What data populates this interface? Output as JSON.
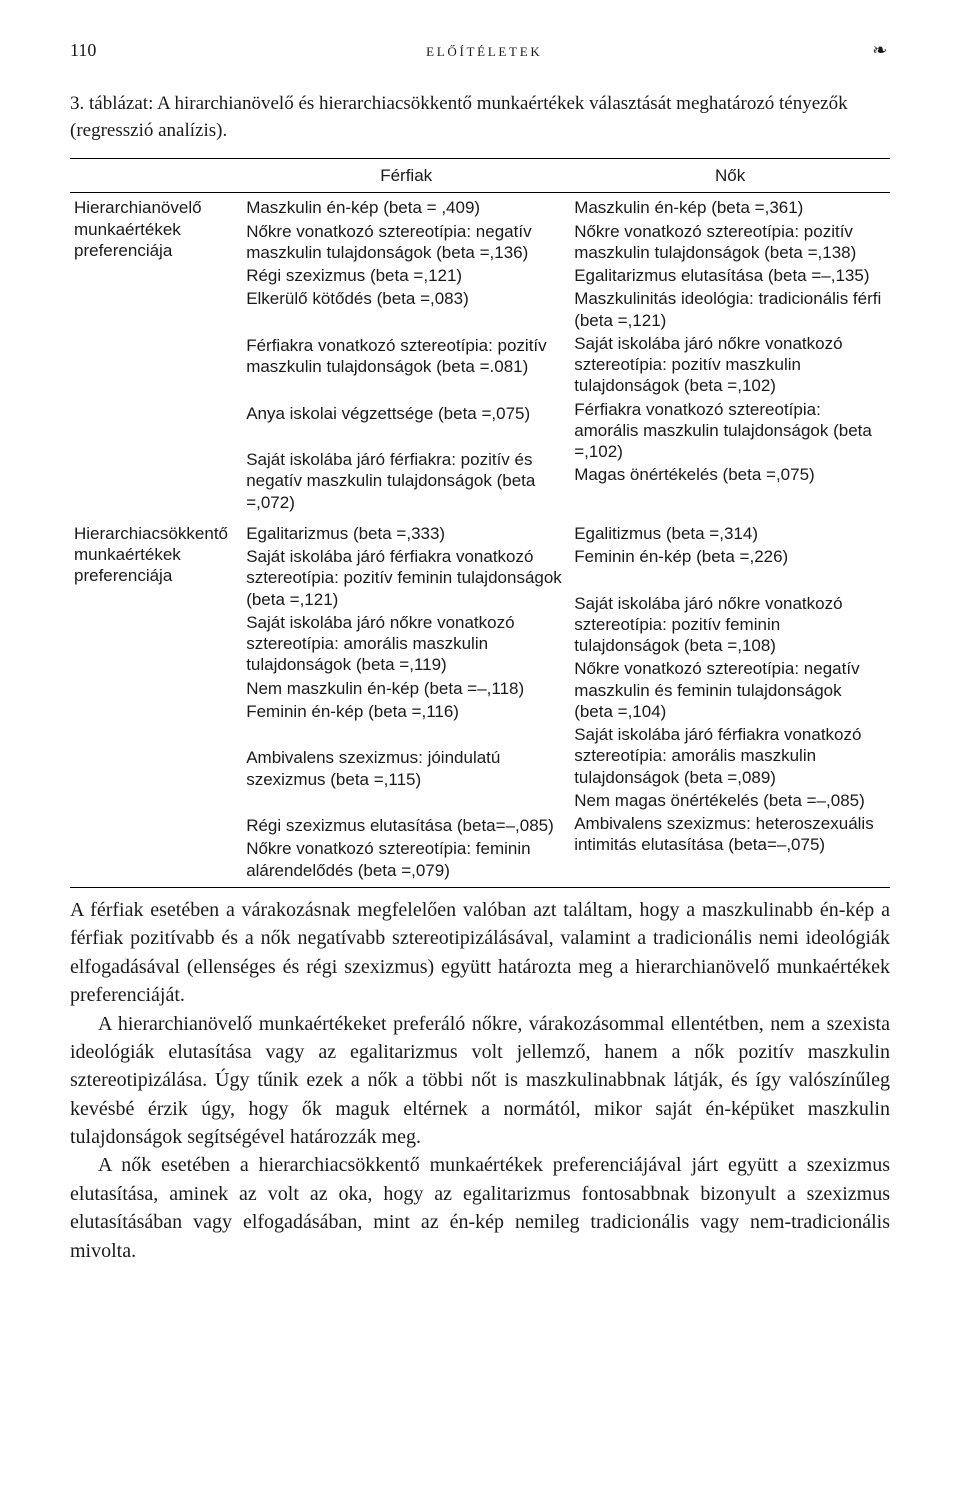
{
  "header": {
    "page_number": "110",
    "running_title": "előítéletek",
    "ornament": "❧"
  },
  "caption": "3. táblázat: A hirarchianövelő és hierarchiacsökkentő munkaértékek választását meghatározó tényezők (regresszió analízis).",
  "cols": {
    "blank": "",
    "men": "Férfiak",
    "women": "Nők"
  },
  "rows": [
    {
      "label": "Hierarchianövelő munkaértékek preferenciája",
      "men": [
        "Maszkulin én-kép (beta = ,409)",
        "Nőkre vonatkozó sztereotípia: negatív maszkulin tulajdonságok (beta =,136)",
        "Régi szexizmus (beta =,121)",
        "Elkerülő kötődés (beta =,083)",
        "",
        "Férfiakra vonatkozó sztereotípia: pozitív maszkulin tulajdonságok (beta =.081)",
        "",
        "Anya iskolai végzettsége (beta =,075)",
        "",
        "Saját iskolába járó férfiakra: pozitív és negatív maszkulin tulajdonságok (beta =,072)"
      ],
      "women": [
        "Maszkulin én-kép (beta =,361)",
        "Nőkre vonatkozó sztereotípia: pozitív maszkulin tulajdonságok (beta =,138)",
        "Egalitarizmus elutasítása (beta =–,135)",
        "Maszkulinitás ideológia: tradicionális férfi (beta =,121)",
        "Saját iskolába járó nőkre vonatkozó sztereotípia: pozitív maszkulin tulajdonságok (beta =,102)",
        "Férfiakra vonatkozó sztereotípia: amorális maszkulin tulajdonságok (beta =,102)",
        "Magas önértékelés (beta =,075)"
      ]
    },
    {
      "label": "Hierarchiacsökkentő munkaértékek preferenciája",
      "men": [
        "Egalitarizmus (beta =,333)",
        "Saját iskolába járó férfiakra vonatkozó sztereotípia: pozitív feminin tulajdonságok (beta =,121)",
        "Saját iskolába járó nőkre vonatkozó sztereotípia: amorális maszkulin tulajdonságok (beta =,119)",
        "Nem maszkulin én-kép (beta =–,118)",
        "Feminin én-kép (beta =,116)",
        "",
        "Ambivalens szexizmus: jóindulatú szexizmus (beta =,115)",
        "",
        "Régi szexizmus elutasítása (beta=–,085)",
        "Nőkre vonatkozó sztereotípia: feminin alárendelődés (beta =,079)"
      ],
      "women": [
        "Egalitizmus (beta =,314)",
        "Feminin én-kép (beta =,226)",
        "",
        "Saját iskolába járó nőkre vonatkozó sztereotípia: pozitív feminin tulajdonságok (beta =,108)",
        "Nőkre vonatkozó sztereotípia: negatív maszkulin és feminin tulajdonságok (beta =,104)",
        "Saját iskolába járó férfiakra vonatkozó sztereotípia: amorális maszkulin tulajdonságok (beta =,089)",
        "Nem magas önértékelés (beta =–,085)",
        "Ambivalens szexizmus: heteroszexuális intimitás elutasítása (beta=–,075)"
      ]
    }
  ],
  "body": {
    "p1": "A férfiak esetében a várakozásnak megfelelően valóban azt találtam, hogy a maszkulinabb én-kép a férfiak pozitívabb és a nők negatívabb sztereotipizálásával, valamint a tradicionális nemi ideológiák elfogadásával (ellenséges és régi szexizmus) együtt határozta meg a hierarchianövelő munkaértékek preferenciáját.",
    "p2": "A hierarchianövelő munkaértékeket preferáló nőkre, várakozásommal ellentétben, nem a szexista ideológiák elutasítása vagy az egalitarizmus volt jellemző, hanem a nők pozitív maszkulin sztereotipizálása. Úgy tűnik ezek a nők a többi nőt is maszkulinabbnak látják, és így valószínűleg kevésbé érzik úgy, hogy ők maguk eltérnek a normától, mikor saját én-képüket maszkulin tulajdonságok segítségével határozzák meg.",
    "p3": "A nők esetében a hierarchiacsökkentő munkaértékek preferenciájával járt együtt a szexizmus elutasítása, aminek az volt az oka, hogy az egalitarizmus fontosabbnak bizonyult a szexizmus elutasításában vagy elfogadásában, mint az én-kép nemileg tradicionális vagy nem-tradicionális mivolta."
  },
  "style": {
    "page_bg": "#ffffff",
    "text_color": "#1a1a1a",
    "body_font": "Georgia",
    "table_font": "Arial",
    "body_fontsize": 20,
    "table_fontsize": 17,
    "caption_fontsize": 19
  }
}
